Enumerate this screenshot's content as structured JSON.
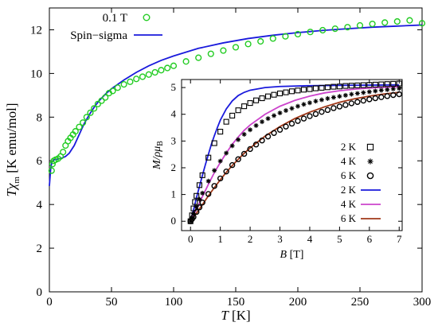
{
  "chart_data": [
    {
      "type": "scatter",
      "xlabel_main": "T",
      "xlabel_unit": "[K]",
      "ylabel_main": "Tχ",
      "ylabel_sub": "m",
      "ylabel_unit": "[K emu/mol]",
      "xlim": [
        0,
        300
      ],
      "ylim": [
        0,
        13
      ],
      "x_ticks": [
        "0",
        "50",
        "100",
        "150",
        "200",
        "250",
        "300"
      ],
      "y_ticks": [
        "0",
        "2",
        "4",
        "6",
        "8",
        "10",
        "12"
      ],
      "legend_placement": "top-left",
      "colors": {
        "data": "#22cc22",
        "model": "#1a1adc"
      },
      "series": [
        {
          "name": "0.1 T",
          "style": "open-circle",
          "points": [
            [
              1.8,
              5.55
            ],
            [
              2.5,
              5.85
            ],
            [
              3.5,
              6.0
            ],
            [
              5,
              6.05
            ],
            [
              7,
              6.1
            ],
            [
              9,
              6.2
            ],
            [
              11,
              6.4
            ],
            [
              13,
              6.7
            ],
            [
              15,
              6.9
            ],
            [
              17,
              7.05
            ],
            [
              19,
              7.2
            ],
            [
              21,
              7.35
            ],
            [
              24,
              7.55
            ],
            [
              27,
              7.75
            ],
            [
              30,
              8.0
            ],
            [
              33,
              8.2
            ],
            [
              36,
              8.4
            ],
            [
              39,
              8.6
            ],
            [
              42,
              8.75
            ],
            [
              45,
              8.9
            ],
            [
              48,
              9.1
            ],
            [
              51,
              9.2
            ],
            [
              55,
              9.35
            ],
            [
              60,
              9.5
            ],
            [
              65,
              9.62
            ],
            [
              70,
              9.75
            ],
            [
              75,
              9.85
            ],
            [
              80,
              9.95
            ],
            [
              85,
              10.05
            ],
            [
              90,
              10.15
            ],
            [
              95,
              10.25
            ],
            [
              100,
              10.35
            ],
            [
              110,
              10.55
            ],
            [
              120,
              10.72
            ],
            [
              130,
              10.9
            ],
            [
              140,
              11.05
            ],
            [
              150,
              11.2
            ],
            [
              160,
              11.35
            ],
            [
              170,
              11.47
            ],
            [
              180,
              11.6
            ],
            [
              190,
              11.7
            ],
            [
              200,
              11.8
            ],
            [
              210,
              11.9
            ],
            [
              220,
              11.98
            ],
            [
              230,
              12.05
            ],
            [
              240,
              12.12
            ],
            [
              250,
              12.2
            ],
            [
              260,
              12.27
            ],
            [
              270,
              12.33
            ],
            [
              280,
              12.38
            ],
            [
              290,
              12.43
            ],
            [
              300,
              12.3
            ]
          ]
        },
        {
          "name": "Spin−sigma",
          "style": "line",
          "points": [
            [
              0,
              4.85
            ],
            [
              1,
              5.6
            ],
            [
              2,
              5.95
            ],
            [
              4,
              6.05
            ],
            [
              7,
              6.08
            ],
            [
              10,
              6.12
            ],
            [
              13,
              6.2
            ],
            [
              16,
              6.35
            ],
            [
              20,
              6.7
            ],
            [
              24,
              7.2
            ],
            [
              28,
              7.7
            ],
            [
              32,
              8.1
            ],
            [
              36,
              8.45
            ],
            [
              40,
              8.75
            ],
            [
              45,
              9.05
            ],
            [
              50,
              9.3
            ],
            [
              60,
              9.7
            ],
            [
              70,
              10.05
            ],
            [
              80,
              10.35
            ],
            [
              90,
              10.6
            ],
            [
              100,
              10.8
            ],
            [
              120,
              11.15
            ],
            [
              140,
              11.4
            ],
            [
              160,
              11.6
            ],
            [
              180,
              11.75
            ],
            [
              200,
              11.87
            ],
            [
              220,
              11.97
            ],
            [
              240,
              12.05
            ],
            [
              260,
              12.12
            ],
            [
              280,
              12.17
            ],
            [
              300,
              12.22
            ]
          ]
        }
      ]
    },
    {
      "type": "scatter",
      "xlabel_main": "B",
      "xlabel_unit": "[T]",
      "ylabel_main": "M/ρμ",
      "ylabel_sub": "B",
      "xlim": [
        -0.3,
        7.1
      ],
      "ylim": [
        -0.35,
        5.3
      ],
      "x_ticks": [
        "0",
        "1",
        "2",
        "3",
        "4",
        "5",
        "6",
        "7"
      ],
      "y_ticks": [
        "0",
        "1",
        "2",
        "3",
        "4",
        "5"
      ],
      "legend_placement": "right",
      "colors": {
        "K2_line": "#1a1adc",
        "K4_line": "#cc44cc",
        "K6_line": "#a03818",
        "markers": "#000000"
      },
      "series": [
        {
          "name": "2 K",
          "style": "open-square",
          "points": [
            [
              0,
              0
            ],
            [
              0.05,
              0.22
            ],
            [
              0.1,
              0.48
            ],
            [
              0.15,
              0.72
            ],
            [
              0.2,
              0.95
            ],
            [
              0.3,
              1.35
            ],
            [
              0.4,
              1.72
            ],
            [
              0.6,
              2.38
            ],
            [
              0.8,
              2.92
            ],
            [
              1.0,
              3.35
            ],
            [
              1.2,
              3.72
            ],
            [
              1.4,
              3.95
            ],
            [
              1.6,
              4.15
            ],
            [
              1.8,
              4.3
            ],
            [
              2.0,
              4.42
            ],
            [
              2.2,
              4.52
            ],
            [
              2.4,
              4.6
            ],
            [
              2.6,
              4.67
            ],
            [
              2.8,
              4.73
            ],
            [
              3.0,
              4.78
            ],
            [
              3.2,
              4.82
            ],
            [
              3.4,
              4.86
            ],
            [
              3.6,
              4.89
            ],
            [
              3.8,
              4.92
            ],
            [
              4.0,
              4.94
            ],
            [
              4.2,
              4.97
            ],
            [
              4.4,
              4.99
            ],
            [
              4.6,
              5.01
            ],
            [
              4.8,
              5.03
            ],
            [
              5.0,
              5.04
            ],
            [
              5.2,
              5.06
            ],
            [
              5.4,
              5.07
            ],
            [
              5.6,
              5.08
            ],
            [
              5.8,
              5.09
            ],
            [
              6.0,
              5.1
            ],
            [
              6.2,
              5.11
            ],
            [
              6.4,
              5.12
            ],
            [
              6.6,
              5.13
            ],
            [
              6.8,
              5.14
            ],
            [
              7.0,
              5.15
            ]
          ]
        },
        {
          "name": "4 K",
          "style": "asterisk",
          "points": [
            [
              0,
              0
            ],
            [
              0.05,
              0.12
            ],
            [
              0.1,
              0.28
            ],
            [
              0.2,
              0.55
            ],
            [
              0.3,
              0.82
            ],
            [
              0.4,
              1.05
            ],
            [
              0.6,
              1.5
            ],
            [
              0.8,
              1.9
            ],
            [
              1.0,
              2.25
            ],
            [
              1.2,
              2.55
            ],
            [
              1.4,
              2.82
            ],
            [
              1.6,
              3.05
            ],
            [
              1.8,
              3.25
            ],
            [
              2.0,
              3.42
            ],
            [
              2.2,
              3.58
            ],
            [
              2.4,
              3.72
            ],
            [
              2.6,
              3.84
            ],
            [
              2.8,
              3.95
            ],
            [
              3.0,
              4.05
            ],
            [
              3.2,
              4.14
            ],
            [
              3.4,
              4.22
            ],
            [
              3.6,
              4.3
            ],
            [
              3.8,
              4.37
            ],
            [
              4.0,
              4.43
            ],
            [
              4.2,
              4.49
            ],
            [
              4.4,
              4.54
            ],
            [
              4.6,
              4.59
            ],
            [
              4.8,
              4.63
            ],
            [
              5.0,
              4.67
            ],
            [
              5.2,
              4.71
            ],
            [
              5.4,
              4.75
            ],
            [
              5.6,
              4.78
            ],
            [
              5.8,
              4.81
            ],
            [
              6.0,
              4.84
            ],
            [
              6.2,
              4.87
            ],
            [
              6.4,
              4.9
            ],
            [
              6.6,
              4.92
            ],
            [
              6.8,
              4.95
            ],
            [
              7.0,
              4.97
            ]
          ]
        },
        {
          "name": "6 K",
          "style": "open-circle",
          "points": [
            [
              0,
              0
            ],
            [
              0.05,
              0.08
            ],
            [
              0.1,
              0.16
            ],
            [
              0.2,
              0.35
            ],
            [
              0.3,
              0.52
            ],
            [
              0.4,
              0.7
            ],
            [
              0.6,
              1.02
            ],
            [
              0.8,
              1.32
            ],
            [
              1.0,
              1.6
            ],
            [
              1.2,
              1.86
            ],
            [
              1.4,
              2.1
            ],
            [
              1.6,
              2.32
            ],
            [
              1.8,
              2.52
            ],
            [
              2.0,
              2.7
            ],
            [
              2.2,
              2.87
            ],
            [
              2.4,
              3.02
            ],
            [
              2.6,
              3.17
            ],
            [
              2.8,
              3.3
            ],
            [
              3.0,
              3.42
            ],
            [
              3.2,
              3.54
            ],
            [
              3.4,
              3.65
            ],
            [
              3.6,
              3.75
            ],
            [
              3.8,
              3.84
            ],
            [
              4.0,
              3.93
            ],
            [
              4.2,
              4.01
            ],
            [
              4.4,
              4.09
            ],
            [
              4.6,
              4.16
            ],
            [
              4.8,
              4.23
            ],
            [
              5.0,
              4.29
            ],
            [
              5.2,
              4.35
            ],
            [
              5.4,
              4.41
            ],
            [
              5.6,
              4.46
            ],
            [
              5.8,
              4.51
            ],
            [
              6.0,
              4.56
            ],
            [
              6.2,
              4.6
            ],
            [
              6.4,
              4.64
            ],
            [
              6.6,
              4.68
            ],
            [
              6.8,
              4.72
            ],
            [
              7.0,
              4.75
            ]
          ]
        },
        {
          "name": "2 K",
          "style": "line",
          "points": [
            [
              0,
              0
            ],
            [
              0.1,
              0.42
            ],
            [
              0.2,
              0.88
            ],
            [
              0.3,
              1.3
            ],
            [
              0.4,
              1.72
            ],
            [
              0.5,
              2.12
            ],
            [
              0.6,
              2.5
            ],
            [
              0.7,
              2.88
            ],
            [
              0.8,
              3.2
            ],
            [
              0.9,
              3.5
            ],
            [
              1.0,
              3.78
            ],
            [
              1.2,
              4.2
            ],
            [
              1.4,
              4.5
            ],
            [
              1.6,
              4.7
            ],
            [
              1.8,
              4.82
            ],
            [
              2.0,
              4.9
            ],
            [
              2.5,
              5.0
            ],
            [
              3.0,
              5.04
            ],
            [
              4.0,
              5.07
            ],
            [
              5.0,
              5.08
            ],
            [
              6.0,
              5.09
            ],
            [
              7.0,
              5.1
            ]
          ]
        },
        {
          "name": "4 K",
          "style": "line",
          "points": [
            [
              0,
              0
            ],
            [
              0.2,
              0.45
            ],
            [
              0.4,
              0.92
            ],
            [
              0.6,
              1.38
            ],
            [
              0.8,
              1.82
            ],
            [
              1.0,
              2.2
            ],
            [
              1.2,
              2.55
            ],
            [
              1.4,
              2.88
            ],
            [
              1.6,
              3.15
            ],
            [
              1.8,
              3.4
            ],
            [
              2.0,
              3.6
            ],
            [
              2.5,
              4.0
            ],
            [
              3.0,
              4.3
            ],
            [
              3.5,
              4.52
            ],
            [
              4.0,
              4.68
            ],
            [
              4.5,
              4.8
            ],
            [
              5.0,
              4.88
            ],
            [
              5.5,
              4.94
            ],
            [
              6.0,
              4.98
            ],
            [
              6.5,
              5.01
            ],
            [
              7.0,
              5.03
            ]
          ]
        },
        {
          "name": "6 K",
          "style": "line",
          "points": [
            [
              0,
              0
            ],
            [
              0.2,
              0.3
            ],
            [
              0.4,
              0.62
            ],
            [
              0.6,
              0.95
            ],
            [
              0.8,
              1.26
            ],
            [
              1.0,
              1.55
            ],
            [
              1.2,
              1.83
            ],
            [
              1.4,
              2.08
            ],
            [
              1.6,
              2.32
            ],
            [
              1.8,
              2.54
            ],
            [
              2.0,
              2.74
            ],
            [
              2.5,
              3.18
            ],
            [
              3.0,
              3.54
            ],
            [
              3.5,
              3.84
            ],
            [
              4.0,
              4.08
            ],
            [
              4.5,
              4.28
            ],
            [
              5.0,
              4.45
            ],
            [
              5.5,
              4.58
            ],
            [
              6.0,
              4.68
            ],
            [
              6.5,
              4.76
            ],
            [
              7.0,
              4.82
            ]
          ]
        }
      ]
    }
  ]
}
